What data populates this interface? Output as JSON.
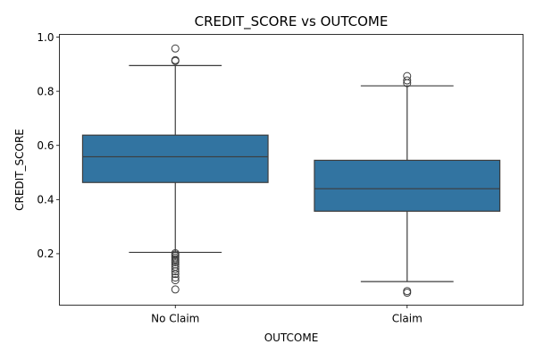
{
  "chart_data": {
    "type": "box",
    "title": "CREDIT_SCORE vs OUTCOME",
    "xlabel": "OUTCOME",
    "ylabel": "CREDIT_SCORE",
    "ylim": [
      0.01,
      1.01
    ],
    "yticks": [
      {
        "value": 0.2,
        "label": "0.2"
      },
      {
        "value": 0.4,
        "label": "0.4"
      },
      {
        "value": 0.6,
        "label": "0.6"
      },
      {
        "value": 0.8,
        "label": "0.8"
      },
      {
        "value": 1.0,
        "label": "1.0"
      }
    ],
    "grid": false,
    "legend": "none",
    "box_color": "#3274a1",
    "line_color": "#3d3d3d",
    "categories": [
      "No Claim",
      "Claim"
    ],
    "boxes": [
      {
        "category": "No Claim",
        "whisker_low": 0.205,
        "q1": 0.463,
        "median": 0.558,
        "q3": 0.638,
        "whisker_high": 0.895,
        "outliers": [
          0.958,
          0.915,
          0.912,
          0.202,
          0.197,
          0.192,
          0.186,
          0.18,
          0.174,
          0.168,
          0.16,
          0.152,
          0.144,
          0.135,
          0.125,
          0.112,
          0.102,
          0.068
        ]
      },
      {
        "category": "Claim",
        "whisker_low": 0.097,
        "q1": 0.357,
        "median": 0.44,
        "q3": 0.545,
        "whisker_high": 0.82,
        "outliers": [
          0.856,
          0.84,
          0.83,
          0.062,
          0.056
        ]
      }
    ]
  }
}
